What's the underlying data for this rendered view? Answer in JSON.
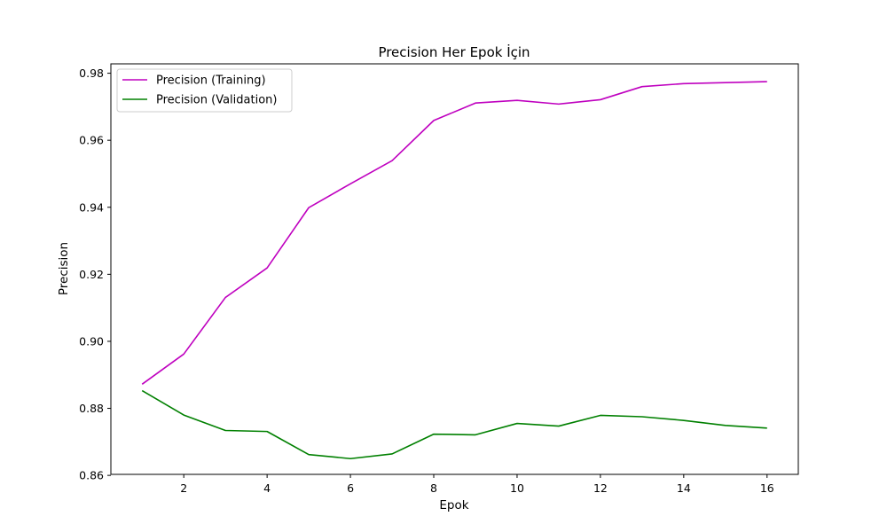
{
  "chart_data": {
    "type": "line",
    "title": "Precision Her Epok İçin",
    "xlabel": "Epok",
    "ylabel": "Precision",
    "x": [
      1,
      2,
      3,
      4,
      5,
      6,
      7,
      8,
      9,
      10,
      11,
      12,
      13,
      14,
      15,
      16
    ],
    "xlim": [
      0.25,
      16.75
    ],
    "ylim": [
      0.8603,
      0.9828
    ],
    "xticks": [
      2,
      4,
      6,
      8,
      10,
      12,
      14,
      16
    ],
    "yticks": [
      0.86,
      0.88,
      0.9,
      0.92,
      0.94,
      0.96,
      0.98
    ],
    "grid": false,
    "legend_position": "top-left",
    "series": [
      {
        "name": "Precision (Training)",
        "color": "#bf00bf",
        "values": [
          0.8872,
          0.8962,
          0.9131,
          0.9219,
          0.9399,
          0.947,
          0.9539,
          0.9659,
          0.9711,
          0.9719,
          0.9708,
          0.9721,
          0.976,
          0.9769,
          0.9772,
          0.9775
        ]
      },
      {
        "name": "Precision (Validation)",
        "color": "#008000",
        "values": [
          0.8853,
          0.878,
          0.8734,
          0.8731,
          0.8662,
          0.865,
          0.8664,
          0.8723,
          0.8721,
          0.8755,
          0.8747,
          0.8779,
          0.8775,
          0.8764,
          0.8749,
          0.8741
        ]
      }
    ]
  }
}
